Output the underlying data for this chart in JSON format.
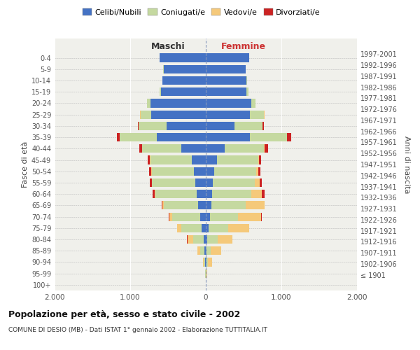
{
  "age_groups": [
    "100+",
    "95-99",
    "90-94",
    "85-89",
    "80-84",
    "75-79",
    "70-74",
    "65-69",
    "60-64",
    "55-59",
    "50-54",
    "45-49",
    "40-44",
    "35-39",
    "30-34",
    "25-29",
    "20-24",
    "15-19",
    "10-14",
    "5-9",
    "0-4"
  ],
  "birth_years": [
    "≤ 1901",
    "1902-1906",
    "1907-1911",
    "1912-1916",
    "1917-1921",
    "1922-1926",
    "1927-1931",
    "1932-1936",
    "1937-1941",
    "1942-1946",
    "1947-1951",
    "1952-1956",
    "1957-1961",
    "1962-1966",
    "1967-1971",
    "1972-1976",
    "1977-1981",
    "1982-1986",
    "1987-1991",
    "1992-1996",
    "1997-2001"
  ],
  "maschi": {
    "celibi": [
      2,
      4,
      8,
      18,
      30,
      55,
      75,
      100,
      120,
      140,
      155,
      185,
      320,
      650,
      520,
      720,
      730,
      590,
      570,
      560,
      610
    ],
    "coniugati": [
      1,
      6,
      18,
      55,
      140,
      270,
      370,
      460,
      550,
      570,
      560,
      550,
      520,
      490,
      370,
      145,
      45,
      18,
      5,
      2,
      1
    ],
    "vedovi": [
      0,
      3,
      12,
      35,
      75,
      55,
      38,
      18,
      8,
      4,
      4,
      4,
      3,
      2,
      1,
      1,
      1,
      0,
      0,
      0,
      0
    ],
    "divorziati": [
      0,
      0,
      0,
      0,
      1,
      2,
      4,
      4,
      28,
      28,
      28,
      28,
      38,
      38,
      9,
      4,
      2,
      1,
      0,
      0,
      0
    ]
  },
  "femmine": {
    "nubili": [
      1,
      4,
      8,
      12,
      18,
      35,
      55,
      75,
      85,
      95,
      110,
      150,
      250,
      580,
      380,
      580,
      600,
      540,
      540,
      530,
      570
    ],
    "coniugate": [
      1,
      6,
      18,
      55,
      140,
      265,
      370,
      450,
      520,
      550,
      560,
      540,
      520,
      490,
      370,
      190,
      55,
      28,
      4,
      2,
      1
    ],
    "vedove": [
      1,
      12,
      55,
      140,
      190,
      270,
      310,
      250,
      135,
      65,
      28,
      18,
      12,
      8,
      4,
      4,
      2,
      0,
      0,
      0,
      0
    ],
    "divorziate": [
      0,
      0,
      0,
      0,
      1,
      2,
      4,
      4,
      38,
      28,
      28,
      28,
      38,
      48,
      14,
      4,
      2,
      1,
      0,
      0,
      0
    ]
  },
  "colors": {
    "celibi": "#4472C4",
    "coniugati": "#C5D9A0",
    "vedovi": "#F5C97A",
    "divorziati": "#CC2222"
  },
  "xlim": 2000,
  "xticks": [
    -2000,
    -1000,
    0,
    1000,
    2000
  ],
  "xticklabels": [
    "2.000",
    "1.000",
    "0",
    "1.000",
    "2.000"
  ],
  "title_main": "Popolazione per età, sesso e stato civile - 2002",
  "subtitle": "COMUNE DI DESIO (MB) - Dati ISTAT 1° gennaio 2002 - Elaborazione TUTTITALIA.IT",
  "ylabel_left": "Fasce di età",
  "ylabel_right": "Anni di nascita",
  "label_maschi": "Maschi",
  "label_femmine": "Femmine",
  "legend_labels": [
    "Celibi/Nubili",
    "Coniugati/e",
    "Vedovi/e",
    "Divorziati/e"
  ],
  "bg_color": "#F0F0EB",
  "bar_height": 0.75
}
